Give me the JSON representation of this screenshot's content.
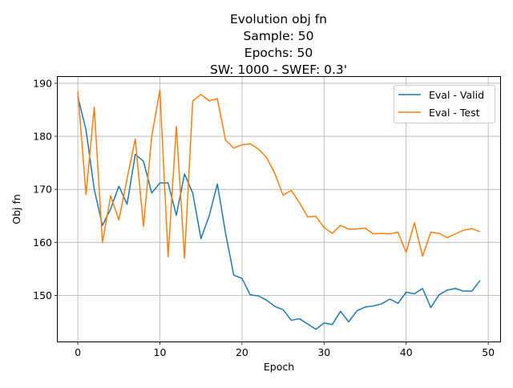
{
  "chart_data": {
    "type": "line",
    "title_lines": [
      "Evolution obj fn",
      "Sample: 50",
      "Epochs: 50",
      "SW: 1000 - SWEF: 0.3'"
    ],
    "xlabel": "Epoch",
    "ylabel": "Obj fn",
    "xlim": [
      -2.45,
      51.45
    ],
    "ylim": [
      141.3,
      191.2
    ],
    "xticks": [
      0,
      10,
      20,
      30,
      40,
      50
    ],
    "yticks": [
      150,
      160,
      170,
      180,
      190
    ],
    "grid": true,
    "legend_position": "top-right",
    "x": [
      0,
      1,
      2,
      3,
      4,
      5,
      6,
      7,
      8,
      9,
      10,
      11,
      12,
      13,
      14,
      15,
      16,
      17,
      18,
      19,
      20,
      21,
      22,
      23,
      24,
      25,
      26,
      27,
      28,
      29,
      30,
      31,
      32,
      33,
      34,
      35,
      36,
      37,
      38,
      39,
      40,
      41,
      42,
      43,
      44,
      45,
      46,
      47,
      48,
      49
    ],
    "series": [
      {
        "name": "Eval - Valid",
        "color": "#1f77b4",
        "values": [
          187.5,
          181.2,
          170.0,
          163.2,
          166.3,
          170.6,
          167.2,
          176.6,
          175.3,
          169.3,
          171.2,
          171.2,
          165.1,
          172.9,
          169.3,
          160.7,
          165.0,
          171.0,
          161.7,
          153.8,
          153.2,
          150.1,
          149.9,
          149.1,
          147.9,
          147.3,
          145.3,
          145.6,
          144.6,
          143.6,
          144.8,
          144.5,
          147.0,
          145.0,
          147.1,
          147.8,
          148.0,
          148.4,
          149.3,
          148.5,
          150.6,
          150.3,
          151.3,
          147.7,
          150.1,
          151.0,
          151.3,
          150.8,
          150.8,
          152.8
        ]
      },
      {
        "name": "Eval - Test",
        "color": "#ff7f0e",
        "values": [
          188.5,
          169.0,
          185.5,
          160.0,
          168.8,
          164.2,
          172.0,
          179.5,
          163.0,
          180.0,
          188.7,
          157.3,
          181.9,
          157.0,
          186.7,
          187.9,
          186.7,
          187.1,
          179.3,
          177.8,
          178.4,
          178.6,
          177.6,
          176.0,
          173.0,
          168.9,
          169.8,
          167.5,
          164.8,
          164.9,
          162.8,
          161.7,
          163.2,
          162.5,
          162.5,
          162.7,
          161.6,
          161.7,
          161.6,
          161.9,
          158.1,
          163.7,
          157.4,
          161.9,
          161.7,
          160.9,
          161.6,
          162.3,
          162.6,
          162.0
        ]
      }
    ]
  }
}
